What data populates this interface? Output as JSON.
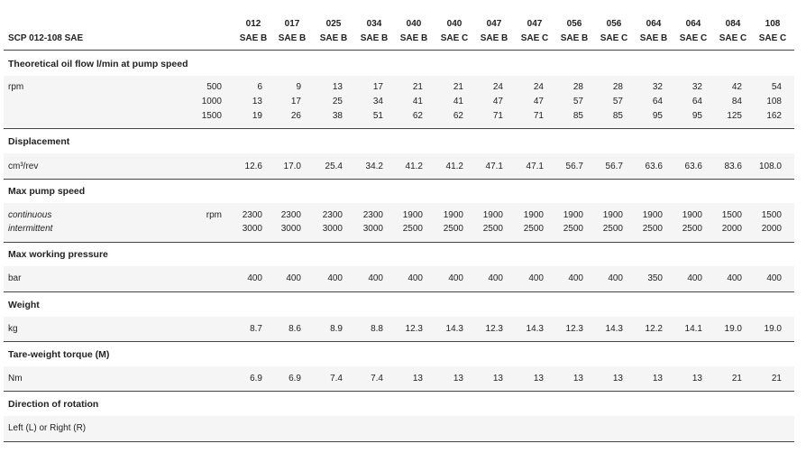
{
  "header": {
    "title": "SCP 012-108 SAE",
    "columns": [
      {
        "model": "012",
        "flange": "SAE B"
      },
      {
        "model": "017",
        "flange": "SAE B"
      },
      {
        "model": "025",
        "flange": "SAE B"
      },
      {
        "model": "034",
        "flange": "SAE B"
      },
      {
        "model": "040",
        "flange": "SAE B"
      },
      {
        "model": "040",
        "flange": "SAE C"
      },
      {
        "model": "047",
        "flange": "SAE B"
      },
      {
        "model": "047",
        "flange": "SAE C"
      },
      {
        "model": "056",
        "flange": "SAE B"
      },
      {
        "model": "056",
        "flange": "SAE C"
      },
      {
        "model": "064",
        "flange": "SAE B"
      },
      {
        "model": "064",
        "flange": "SAE C"
      },
      {
        "model": "084",
        "flange": "SAE C"
      },
      {
        "model": "108",
        "flange": "SAE C"
      }
    ]
  },
  "sections": [
    {
      "title": "Theoretical oil flow l/min at pump speed",
      "label": "rpm",
      "rows": [
        {
          "speed": "500",
          "values": [
            "6",
            "9",
            "13",
            "17",
            "21",
            "21",
            "24",
            "24",
            "28",
            "28",
            "32",
            "32",
            "42",
            "54"
          ]
        },
        {
          "speed": "1000",
          "values": [
            "13",
            "17",
            "25",
            "34",
            "41",
            "41",
            "47",
            "47",
            "57",
            "57",
            "64",
            "64",
            "84",
            "108"
          ]
        },
        {
          "speed": "1500",
          "values": [
            "19",
            "26",
            "38",
            "51",
            "62",
            "62",
            "71",
            "71",
            "85",
            "85",
            "95",
            "95",
            "125",
            "162"
          ]
        }
      ]
    },
    {
      "title": "Displacement",
      "label": "cm³/rev",
      "rows": [
        {
          "values": [
            "12.6",
            "17.0",
            "25.4",
            "34.2",
            "41.2",
            "41.2",
            "47.1",
            "47.1",
            "56.7",
            "56.7",
            "63.6",
            "63.6",
            "83.6",
            "108.0"
          ]
        }
      ]
    },
    {
      "title": "Max pump speed",
      "unit": "rpm",
      "rows": [
        {
          "label": "continuous",
          "values": [
            "2300",
            "2300",
            "2300",
            "2300",
            "1900",
            "1900",
            "1900",
            "1900",
            "1900",
            "1900",
            "1900",
            "1900",
            "1500",
            "1500"
          ]
        },
        {
          "label": "intermittent",
          "values": [
            "3000",
            "3000",
            "3000",
            "3000",
            "2500",
            "2500",
            "2500",
            "2500",
            "2500",
            "2500",
            "2500",
            "2500",
            "2000",
            "2000"
          ]
        }
      ]
    },
    {
      "title": "Max working pressure",
      "label": "bar",
      "rows": [
        {
          "values": [
            "400",
            "400",
            "400",
            "400",
            "400",
            "400",
            "400",
            "400",
            "400",
            "400",
            "350",
            "400",
            "400",
            "400"
          ]
        }
      ]
    },
    {
      "title": "Weight",
      "label": "kg",
      "rows": [
        {
          "values": [
            "8.7",
            "8.6",
            "8.9",
            "8.8",
            "12.3",
            "14.3",
            "12.3",
            "14.3",
            "12.3",
            "14.3",
            "12.2",
            "14.1",
            "19.0",
            "19.0"
          ]
        }
      ]
    },
    {
      "title": "Tare-weight torque (M)",
      "label": "Nm",
      "rows": [
        {
          "values": [
            "6.9",
            "6.9",
            "7.4",
            "7.4",
            "13",
            "13",
            "13",
            "13",
            "13",
            "13",
            "13",
            "13",
            "21",
            "21"
          ]
        }
      ]
    },
    {
      "title": "Direction of rotation",
      "label": "Left (L) or Right (R)"
    }
  ]
}
